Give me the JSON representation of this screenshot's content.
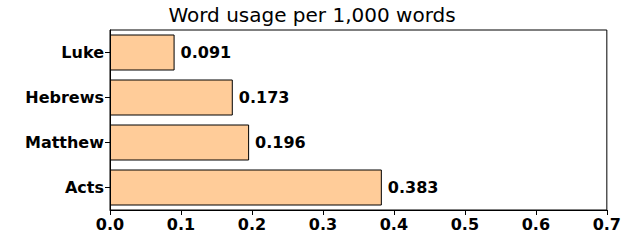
{
  "chart_data": {
    "type": "bar",
    "title": "Word usage per 1,000 words",
    "orientation": "horizontal",
    "categories": [
      "Acts",
      "Matthew",
      "Hebrews",
      "Luke"
    ],
    "values": [
      0.383,
      0.196,
      0.173,
      0.091
    ],
    "color": "#ffcc99",
    "xlim": [
      0,
      0.7
    ],
    "xticks": [
      {
        "value": 0,
        "label": "0.0"
      },
      0.1,
      0.2,
      0.3,
      0.4,
      0.5,
      0.6,
      0.7
    ],
    "grid": false,
    "data_labels": true
  }
}
